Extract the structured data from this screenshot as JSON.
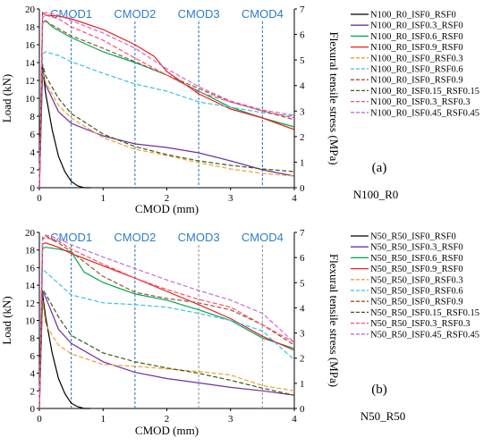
{
  "chart_data": [
    {
      "type": "line",
      "panel_label": "(a)",
      "name_label": "N100_R0",
      "xlabel": "CMOD (mm)",
      "ylabel": "Load (kN)",
      "y2label": "Flexural tensile stress (MPa)",
      "xlim": [
        0,
        4
      ],
      "ylim": [
        0,
        20
      ],
      "y2lim": [
        0,
        7
      ],
      "xticks": [
        "0",
        "1",
        "2",
        "3",
        "4"
      ],
      "yticks": [
        "0",
        "2",
        "4",
        "6",
        "8",
        "10",
        "12",
        "14",
        "16",
        "18",
        "20"
      ],
      "y2ticks": [
        "0",
        "1",
        "2",
        "3",
        "4",
        "5",
        "6",
        "7"
      ],
      "grid": false,
      "legend_position": "right",
      "markers": [
        {
          "label": "CMOD1",
          "x": 0.5,
          "color": "#2E7FC4"
        },
        {
          "label": "CMOD2",
          "x": 1.5,
          "color": "#2E7FC4"
        },
        {
          "label": "CMOD3",
          "x": 2.5,
          "color": "#2E7FC4"
        },
        {
          "label": "CMOD4",
          "x": 3.5,
          "color": "#2E7FC4"
        }
      ],
      "series": [
        {
          "name": "N100_R0_ISF0_RSF0",
          "color": "#000000",
          "dash": "solid",
          "x": [
            0,
            0.05,
            0.1,
            0.2,
            0.3,
            0.4,
            0.5,
            0.6,
            0.7,
            0.8
          ],
          "y": [
            0,
            13.5,
            10.5,
            6.5,
            3.5,
            1.8,
            0.7,
            0.2,
            0,
            0
          ]
        },
        {
          "name": "N100_R0_ISF0.3_RSF0",
          "color": "#7030A0",
          "dash": "solid",
          "x": [
            0,
            0.05,
            0.1,
            0.3,
            0.5,
            1,
            1.5,
            2,
            2.5,
            3,
            3.5,
            4
          ],
          "y": [
            0,
            13.3,
            11.5,
            8.5,
            7.2,
            5.8,
            4.9,
            4.5,
            3.9,
            3.0,
            2.0,
            1.3
          ]
        },
        {
          "name": "N100_R0_ISF0.6_RSF0",
          "color": "#00A651",
          "dash": "solid",
          "x": [
            0,
            0.05,
            0.1,
            0.2,
            0.5,
            1,
            1.5,
            2,
            2.5,
            3,
            3.5,
            4
          ],
          "y": [
            0,
            18.5,
            18.7,
            18.0,
            16.8,
            15.2,
            14.0,
            12.6,
            10.8,
            9.0,
            7.8,
            6.8
          ]
        },
        {
          "name": "N100_R0_ISF0.9_RSF0",
          "color": "#E8221B",
          "dash": "solid",
          "x": [
            0,
            0.05,
            0.1,
            0.3,
            0.5,
            1,
            1.5,
            1.8,
            2,
            2.5,
            3,
            3.5,
            4
          ],
          "y": [
            0,
            19.6,
            19.3,
            19.2,
            18.9,
            17.7,
            16.0,
            14.7,
            13.0,
            10.5,
            8.8,
            7.8,
            6.5
          ]
        },
        {
          "name": "N100_R0_ISF0_RSF0.3",
          "color": "#F0A030",
          "dash": "dashed",
          "x": [
            0,
            0.05,
            0.1,
            0.3,
            0.5,
            1,
            1.5,
            2,
            2.5,
            3,
            3.5,
            4
          ],
          "y": [
            0,
            12.8,
            11.8,
            9.2,
            7.8,
            5.6,
            4.3,
            3.6,
            2.8,
            2.1,
            1.6,
            1.3
          ]
        },
        {
          "name": "N100_R0_ISF0_RSF0.6",
          "color": "#3CC0E8",
          "dash": "dashed",
          "x": [
            0,
            0.05,
            0.1,
            0.3,
            0.5,
            1,
            1.5,
            2,
            2.5,
            3,
            3.5,
            4
          ],
          "y": [
            0,
            15.0,
            15.2,
            14.8,
            14.1,
            12.8,
            11.6,
            10.8,
            9.6,
            9.0,
            8.4,
            8.0
          ]
        },
        {
          "name": "N100_R0_ISF0_RSF0.9",
          "color": "#A0522D",
          "dash": "dashed",
          "x": [
            0,
            0.05,
            0.1,
            0.3,
            0.5,
            1,
            1.5,
            2,
            2.5,
            3,
            3.5,
            4
          ],
          "y": [
            0,
            18.4,
            18.6,
            17.8,
            17.0,
            15.6,
            14.1,
            12.6,
            11.1,
            9.6,
            8.6,
            7.6
          ]
        },
        {
          "name": "N100_R0_ISF0.15_RSF0.15",
          "color": "#3A5A1E",
          "dash": "dashed",
          "x": [
            0,
            0.05,
            0.1,
            0.3,
            0.5,
            1,
            1.5,
            2,
            2.5,
            3,
            3.5,
            4
          ],
          "y": [
            0,
            13.8,
            12.5,
            10.0,
            8.3,
            6.0,
            4.6,
            3.7,
            3.0,
            2.5,
            2.1,
            1.8
          ]
        },
        {
          "name": "N100_R0_ISF0.3_RSF0.3",
          "color": "#FF4D6D",
          "dash": "dashed",
          "x": [
            0,
            0.05,
            0.1,
            0.3,
            0.5,
            1,
            1.5,
            2,
            2.5,
            3,
            3.5,
            4
          ],
          "y": [
            0,
            19.0,
            19.3,
            18.9,
            18.0,
            16.5,
            14.5,
            12.6,
            10.7,
            9.6,
            8.6,
            7.8
          ]
        },
        {
          "name": "N100_R0_ISF0.45_RSF0.45",
          "color": "#C86BD8",
          "dash": "dashed",
          "x": [
            0,
            0.05,
            0.1,
            0.3,
            0.5,
            1,
            1.5,
            2,
            2.5,
            3,
            3.5,
            4
          ],
          "y": [
            0,
            19.4,
            19.6,
            19.3,
            18.7,
            17.3,
            15.6,
            13.3,
            11.3,
            9.7,
            8.7,
            8.1
          ]
        }
      ]
    },
    {
      "type": "line",
      "panel_label": "(b)",
      "name_label": "N50_R50",
      "xlabel": "CMOD (mm)",
      "ylabel": "Load (kN)",
      "y2label": "Flexural tensile stress (MPa)",
      "xlim": [
        0,
        4
      ],
      "ylim": [
        0,
        20
      ],
      "y2lim": [
        0,
        7
      ],
      "xticks": [
        "0",
        "1",
        "2",
        "3",
        "4"
      ],
      "yticks": [
        "0",
        "2",
        "4",
        "6",
        "8",
        "10",
        "12",
        "14",
        "16",
        "18",
        "20"
      ],
      "y2ticks": [
        "0",
        "1",
        "2",
        "3",
        "4",
        "5",
        "6",
        "7"
      ],
      "grid": false,
      "legend_position": "right",
      "markers": [
        {
          "label": "CMOD1",
          "x": 0.5,
          "color": "#2E7FC4"
        },
        {
          "label": "CMOD2",
          "x": 1.5,
          "color": "#2E7FC4"
        },
        {
          "label": "CMOD3",
          "x": 2.5,
          "color": "#999999"
        },
        {
          "label": "CMOD4",
          "x": 3.5,
          "color": "#999999"
        }
      ],
      "series": [
        {
          "name": "N50_R50_ISF0_RSF0",
          "color": "#000000",
          "dash": "solid",
          "x": [
            0,
            0.05,
            0.1,
            0.2,
            0.3,
            0.4,
            0.5,
            0.6,
            0.7,
            0.8
          ],
          "y": [
            0,
            13.0,
            10.3,
            6.3,
            3.4,
            1.7,
            0.6,
            0.2,
            0,
            0
          ]
        },
        {
          "name": "N50_R50_ISF0.3_RSF0",
          "color": "#7030A0",
          "dash": "solid",
          "x": [
            0,
            0.05,
            0.1,
            0.3,
            0.5,
            1,
            1.5,
            2,
            2.5,
            3,
            3.5,
            4
          ],
          "y": [
            0,
            13.3,
            12.6,
            9.0,
            7.4,
            5.3,
            4.1,
            3.4,
            2.9,
            2.4,
            2.0,
            1.5
          ]
        },
        {
          "name": "N50_R50_ISF0.6_RSF0",
          "color": "#00A651",
          "dash": "solid",
          "x": [
            0,
            0.05,
            0.1,
            0.3,
            0.5,
            0.7,
            1,
            1.5,
            2,
            2.5,
            3,
            3.5,
            4
          ],
          "y": [
            0,
            18.2,
            18.3,
            18.1,
            17.8,
            15.5,
            14.3,
            13.0,
            12.3,
            11.2,
            10.0,
            8.0,
            6.8
          ]
        },
        {
          "name": "N50_R50_ISF0.9_RSF0",
          "color": "#E8221B",
          "dash": "solid",
          "x": [
            0,
            0.05,
            0.1,
            0.3,
            0.5,
            1,
            1.5,
            2,
            2.5,
            3,
            3.5,
            4
          ],
          "y": [
            0,
            18.7,
            18.8,
            18.3,
            17.6,
            16.2,
            14.8,
            13.3,
            11.8,
            10.2,
            8.2,
            6.6
          ]
        },
        {
          "name": "N50_R50_ISF0_RSF0.3",
          "color": "#F0A030",
          "dash": "dashed",
          "x": [
            0,
            0.05,
            0.1,
            0.3,
            0.5,
            1,
            1.5,
            2,
            2.5,
            3,
            3.5,
            4
          ],
          "y": [
            0,
            12.3,
            9.5,
            7.2,
            6.2,
            5.0,
            4.8,
            4.5,
            4.2,
            3.8,
            2.6,
            2.0
          ]
        },
        {
          "name": "N50_R50_ISF0_RSF0.6",
          "color": "#3CC0E8",
          "dash": "dashed",
          "x": [
            0,
            0.05,
            0.1,
            0.3,
            0.5,
            1,
            1.5,
            2,
            2.5,
            3,
            3.5,
            4
          ],
          "y": [
            0,
            15.8,
            15.5,
            14.2,
            12.9,
            12.0,
            11.8,
            11.5,
            10.8,
            10.0,
            8.8,
            5.5
          ]
        },
        {
          "name": "N50_R50_ISF0_RSF0.9",
          "color": "#A0522D",
          "dash": "dashed",
          "x": [
            0,
            0.05,
            0.1,
            0.3,
            0.5,
            1,
            1.5,
            2,
            2.5,
            3,
            3.5,
            4
          ],
          "y": [
            0,
            19.2,
            19.5,
            18.8,
            17.8,
            15.0,
            13.2,
            12.5,
            12.0,
            11.2,
            9.5,
            7.2
          ]
        },
        {
          "name": "N50_R50_ISF0.15_RSF0.15",
          "color": "#3A5A1E",
          "dash": "dashed",
          "x": [
            0,
            0.05,
            0.1,
            0.3,
            0.5,
            1,
            1.5,
            2,
            2.5,
            3,
            3.5,
            4
          ],
          "y": [
            0,
            13.5,
            13.0,
            10.4,
            8.3,
            6.3,
            5.3,
            4.6,
            4.0,
            3.2,
            2.3,
            1.5
          ]
        },
        {
          "name": "N50_R50_ISF0.3_RSF0.3",
          "color": "#FF4D6D",
          "dash": "dashed",
          "x": [
            0,
            0.05,
            0.1,
            0.3,
            0.5,
            1,
            1.5,
            2,
            2.5,
            3,
            3.5,
            4
          ],
          "y": [
            0,
            19.5,
            19.6,
            19.0,
            18.1,
            16.4,
            14.8,
            13.5,
            12.4,
            11.5,
            9.5,
            7.5
          ]
        },
        {
          "name": "N50_R50_ISF0.45_RSF0.45",
          "color": "#C86BD8",
          "dash": "dashed",
          "x": [
            0,
            0.05,
            0.1,
            0.3,
            0.5,
            1,
            1.5,
            2,
            2.5,
            3,
            3.5,
            4
          ],
          "y": [
            0,
            19.5,
            19.7,
            19.3,
            18.6,
            17.2,
            15.9,
            14.6,
            13.4,
            12.3,
            10.8,
            7.5
          ]
        }
      ]
    }
  ]
}
